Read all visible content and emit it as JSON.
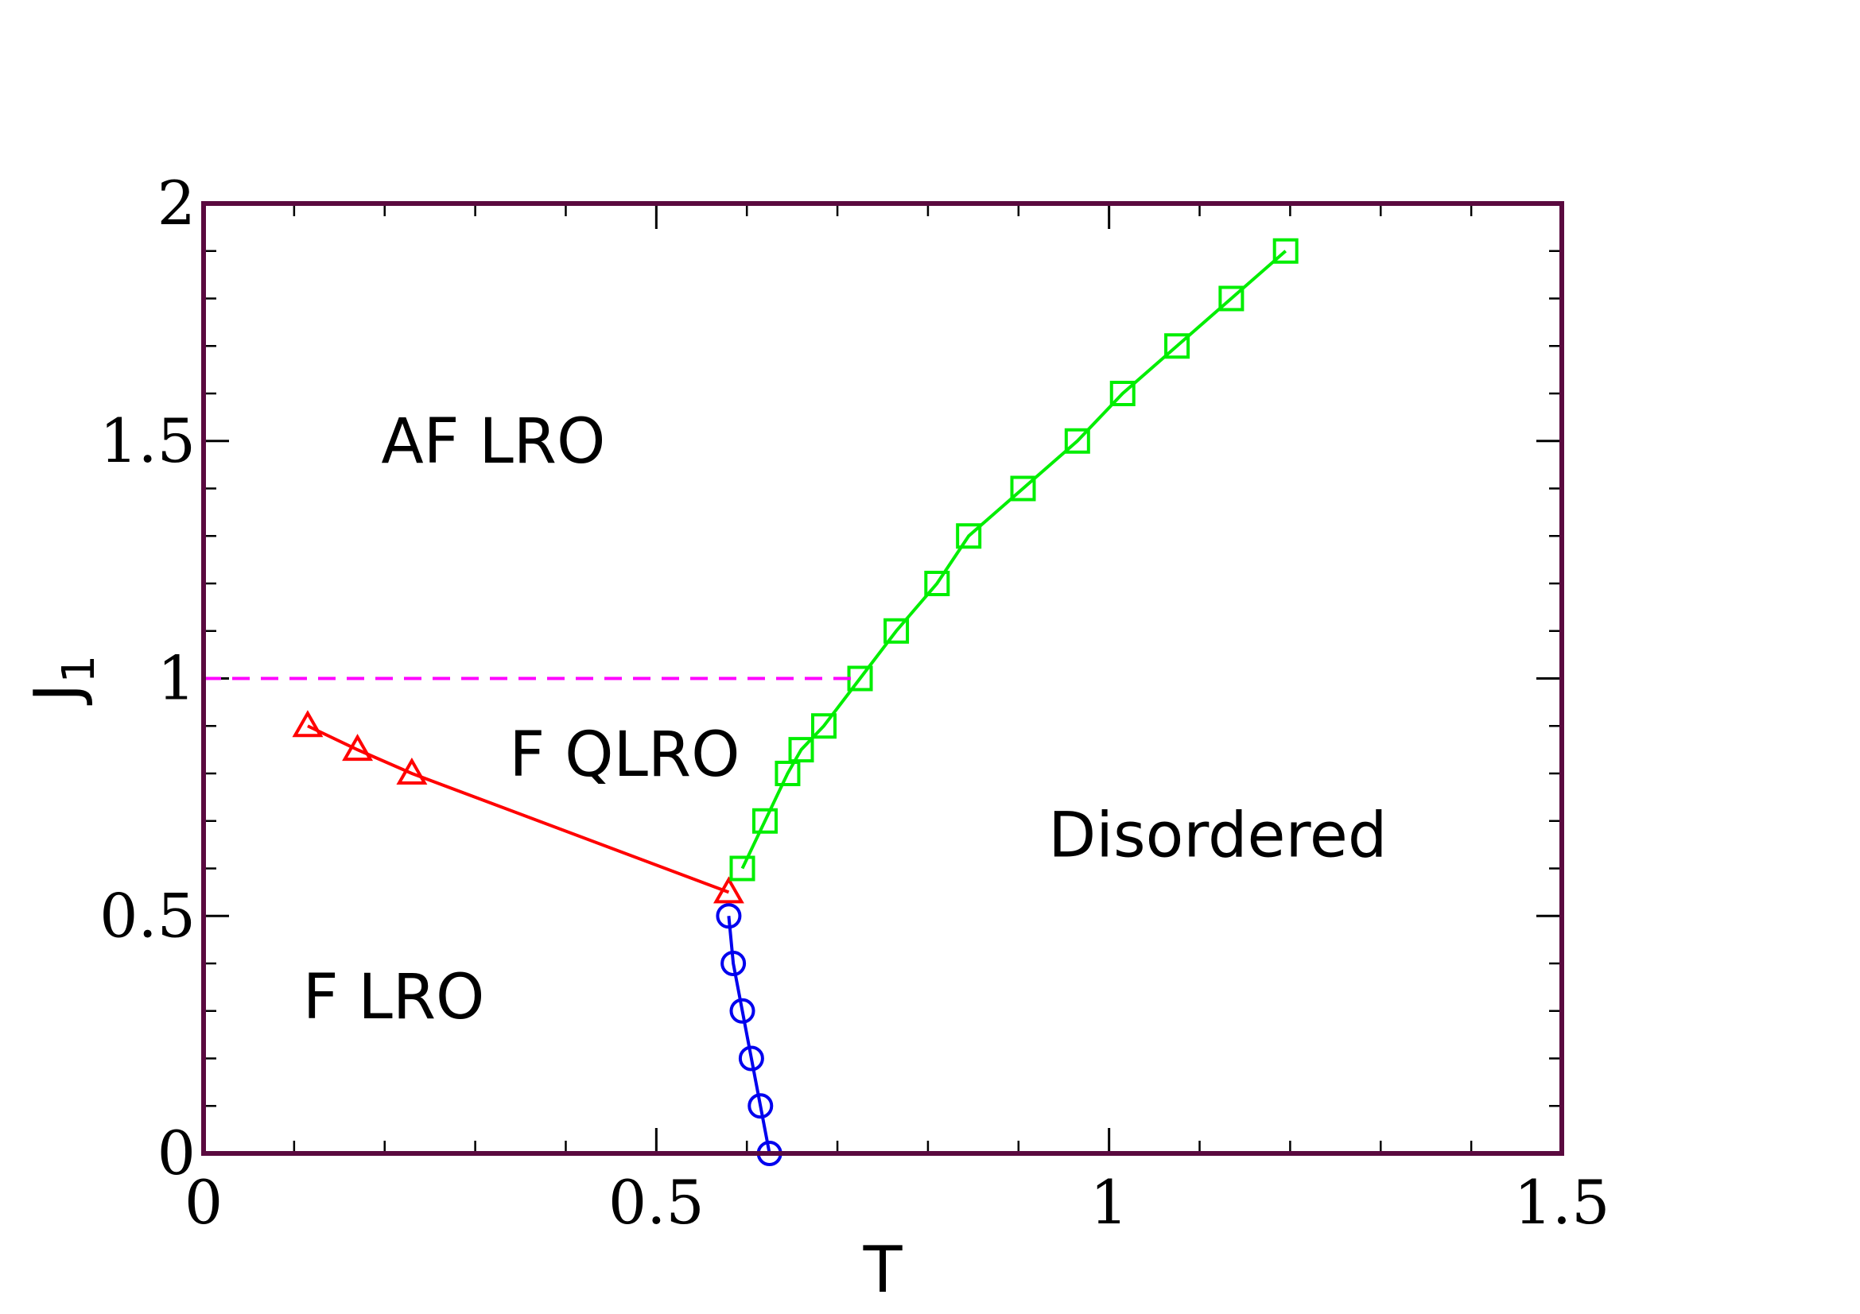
{
  "chart_data": {
    "type": "line",
    "xlabel": "T",
    "ylabel": "J",
    "ylabel_subscript": "1",
    "xlim": [
      0,
      1.5
    ],
    "ylim": [
      0,
      2
    ],
    "x_ticks": [
      0,
      0.5,
      1,
      1.5
    ],
    "x_tick_labels": [
      "0",
      "0.5",
      "1",
      "1.5"
    ],
    "y_ticks": [
      0,
      0.5,
      1,
      1.5,
      2
    ],
    "y_tick_labels": [
      "0",
      "0.5",
      "1",
      "1.5",
      "2"
    ],
    "x_minor_step": 0.1,
    "y_minor_step": 0.1,
    "grid": false,
    "frame_color": "#5a0a3f",
    "series": [
      {
        "marker": "triangle",
        "color": "#ff0000",
        "line": "solid",
        "x": [
          0.115,
          0.17,
          0.23,
          0.58
        ],
        "y": [
          0.9,
          0.85,
          0.8,
          0.55
        ]
      },
      {
        "marker": "circle",
        "color": "#0000ee",
        "line": "solid",
        "x": [
          0.58,
          0.585,
          0.595,
          0.605,
          0.615,
          0.625
        ],
        "y": [
          0.5,
          0.4,
          0.3,
          0.2,
          0.1,
          0.0
        ]
      },
      {
        "marker": "square",
        "color": "#00ee00",
        "line": "solid",
        "x": [
          0.595,
          0.62,
          0.645,
          0.66,
          0.685,
          0.725,
          0.765,
          0.81,
          0.845,
          0.905,
          0.965,
          1.015,
          1.075,
          1.135,
          1.195
        ],
        "y": [
          0.6,
          0.7,
          0.8,
          0.85,
          0.9,
          1.0,
          1.1,
          1.2,
          1.3,
          1.4,
          1.5,
          1.6,
          1.7,
          1.8,
          1.9
        ]
      },
      {
        "marker": "none",
        "color": "#ff00ff",
        "line": "dashed",
        "x": [
          0,
          0.725
        ],
        "y": [
          1.0,
          1.0
        ]
      }
    ],
    "annotations": [
      {
        "text": "AF LRO",
        "x": 0.32,
        "y": 1.5
      },
      {
        "text": "F QLRO",
        "x": 0.465,
        "y": 0.84
      },
      {
        "text": "Disordered",
        "x": 1.12,
        "y": 0.67
      },
      {
        "text": "F LRO",
        "x": 0.21,
        "y": 0.33
      }
    ]
  }
}
